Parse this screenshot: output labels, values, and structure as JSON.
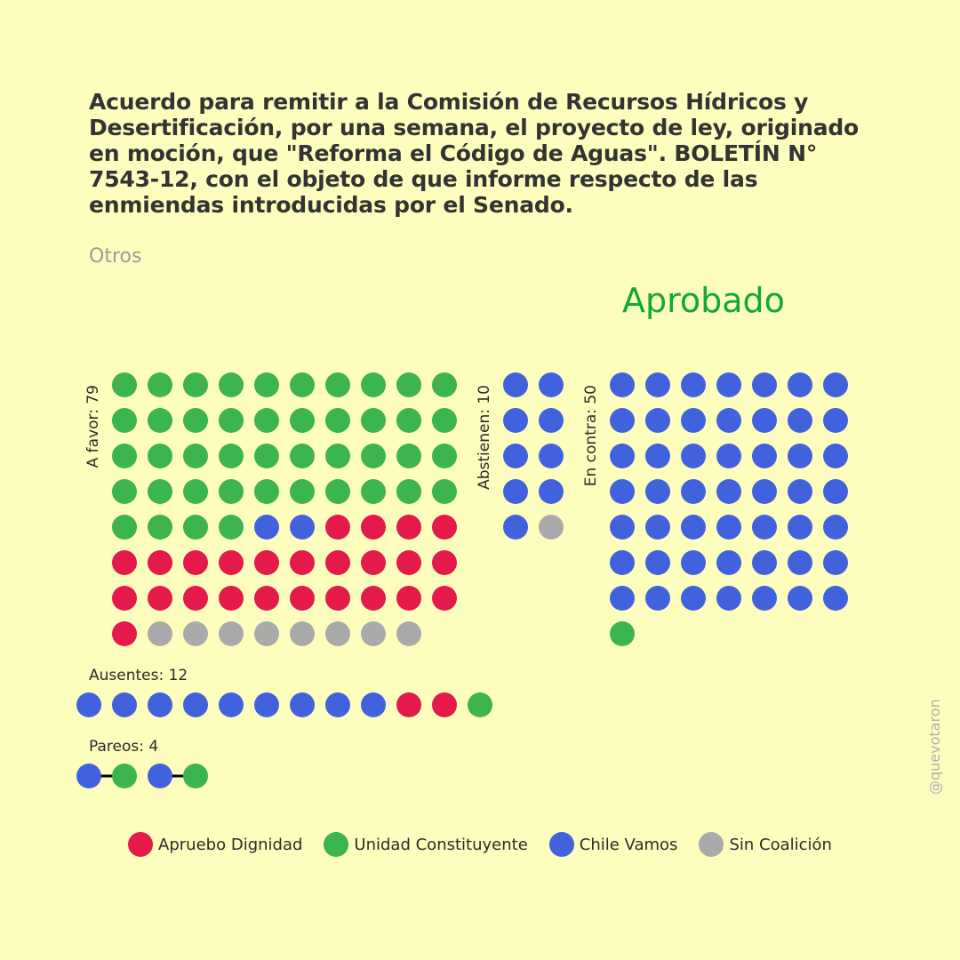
{
  "title": "Acuerdo para remitir a la Comisión de Recursos Hídricos y Desertificación, por una semana, el proyecto de ley, originado en moción, que \"Reforma el Código de Aguas\". BOLETÍN N° 7543-12, con el objeto de que informe respecto de las enmiendas introducidas por el Senado.",
  "category": "Otros",
  "result": "Aprobado",
  "credit": "@quevotaron",
  "colors": {
    "background": "#fdfdbe",
    "result": "#11a83a",
    "Apruebo Dignidad": "#e41a4b",
    "Unidad Constituyente": "#3cb44f",
    "Chile Vamos": "#4262dd",
    "Sin Coalición": "#aaaaaa"
  },
  "chart_data": {
    "type": "waffle",
    "groups": [
      {
        "id": "a_favor",
        "label": "A favor: 79",
        "total": 79,
        "by_coalition": [
          {
            "coalition": "Unidad Constituyente",
            "count": 44
          },
          {
            "coalition": "Chile Vamos",
            "count": 2
          },
          {
            "coalition": "Apruebo Dignidad",
            "count": 25
          },
          {
            "coalition": "Sin Coalición",
            "count": 8
          }
        ]
      },
      {
        "id": "abstienen",
        "label": "Abstienen: 10",
        "total": 10,
        "by_coalition": [
          {
            "coalition": "Chile Vamos",
            "count": 9
          },
          {
            "coalition": "Sin Coalición",
            "count": 1
          }
        ]
      },
      {
        "id": "en_contra",
        "label": "En contra: 50",
        "total": 50,
        "by_coalition": [
          {
            "coalition": "Chile Vamos",
            "count": 49
          },
          {
            "coalition": "Unidad Constituyente",
            "count": 1
          }
        ]
      },
      {
        "id": "ausentes",
        "label": "Ausentes: 12",
        "total": 12,
        "by_coalition": [
          {
            "coalition": "Chile Vamos",
            "count": 9
          },
          {
            "coalition": "Apruebo Dignidad",
            "count": 2
          },
          {
            "coalition": "Unidad Constituyente",
            "count": 1
          }
        ]
      },
      {
        "id": "pareos",
        "label": "Pareos: 4",
        "total": 4,
        "pairs": [
          [
            "Chile Vamos",
            "Unidad Constituyente"
          ],
          [
            "Chile Vamos",
            "Unidad Constituyente"
          ]
        ]
      }
    ],
    "legend": [
      "Apruebo Dignidad",
      "Unidad Constituyente",
      "Chile Vamos",
      "Sin Coalición"
    ]
  }
}
